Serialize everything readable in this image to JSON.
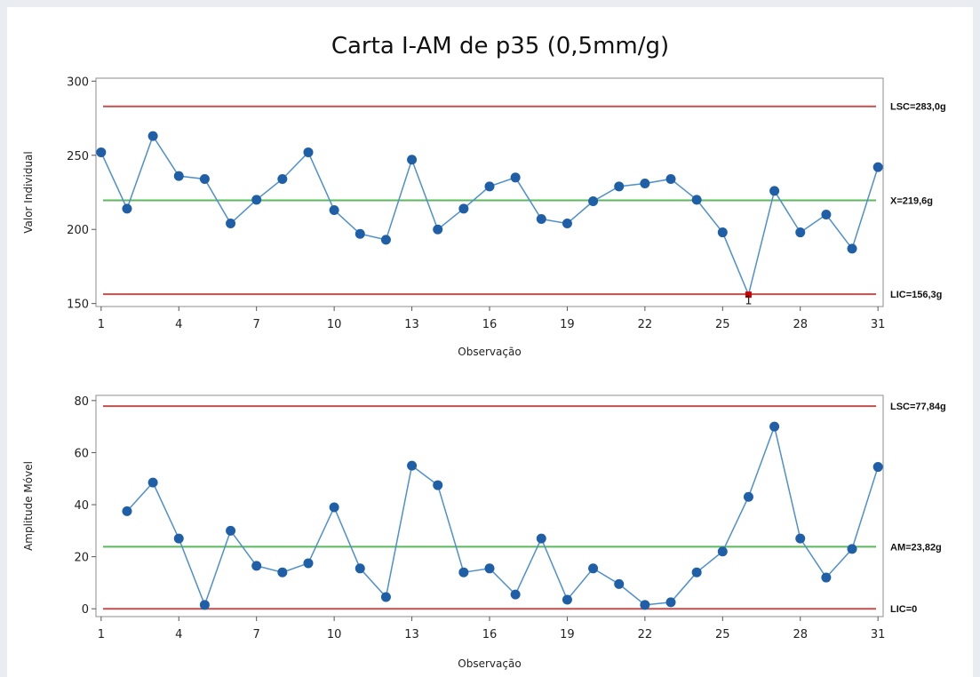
{
  "title": "Carta I-AM de p35 (0,5mm/g)",
  "colors": {
    "series": "#1f5fa8",
    "line": "#4d8fd0",
    "center": "#5cb85c",
    "limit": "#c0504d",
    "outlier": "#d40000"
  },
  "chart_data": [
    {
      "type": "line",
      "name": "individual",
      "xlabel": "Observação",
      "ylabel": "Valor Individual",
      "ylim": [
        148,
        302
      ],
      "yticks": [
        150,
        200,
        250,
        300
      ],
      "xticks": [
        1,
        4,
        7,
        10,
        13,
        16,
        19,
        22,
        25,
        28,
        31
      ],
      "x": [
        1,
        2,
        3,
        4,
        5,
        6,
        7,
        8,
        9,
        10,
        11,
        12,
        13,
        14,
        15,
        16,
        17,
        18,
        19,
        20,
        21,
        22,
        23,
        24,
        25,
        26,
        27,
        28,
        29,
        30,
        31
      ],
      "values": [
        252,
        214,
        263,
        236,
        234,
        204,
        220,
        234,
        252,
        213,
        197,
        193,
        247,
        200,
        214,
        229,
        235,
        207,
        204,
        219,
        229,
        231,
        234,
        220,
        198,
        156,
        226,
        198,
        210,
        187,
        242
      ],
      "outliers": [
        26
      ],
      "outlier_marker": "1",
      "ucl": {
        "value": 283.0,
        "label": "LSC=283,0g"
      },
      "center": {
        "value": 219.6,
        "label": "X=219,6g"
      },
      "lcl": {
        "value": 156.3,
        "label": "LIC=156,3g"
      }
    },
    {
      "type": "line",
      "name": "moving_range",
      "xlabel": "Observação",
      "ylabel": "Amplitude Móvel",
      "ylim": [
        -3,
        82
      ],
      "yticks": [
        0,
        20,
        40,
        60,
        80
      ],
      "xticks": [
        1,
        4,
        7,
        10,
        13,
        16,
        19,
        22,
        25,
        28,
        31
      ],
      "x": [
        2,
        3,
        4,
        5,
        6,
        7,
        8,
        9,
        10,
        11,
        12,
        13,
        14,
        15,
        16,
        17,
        18,
        19,
        20,
        21,
        22,
        23,
        24,
        25,
        26,
        27,
        28,
        29,
        30,
        31
      ],
      "values": [
        37.5,
        48.5,
        27,
        1.5,
        30,
        16.5,
        14,
        17.5,
        39,
        15.5,
        4.5,
        55,
        47.5,
        14,
        15.5,
        5.5,
        27,
        3.5,
        15.5,
        9.5,
        1.5,
        2.5,
        14,
        22,
        43,
        70,
        27,
        12,
        23,
        54.5
      ],
      "ucl": {
        "value": 77.84,
        "label": "LSC=77,84g"
      },
      "center": {
        "value": 23.82,
        "label": "AM=23,82g"
      },
      "lcl": {
        "value": 0,
        "label": "LIC=0"
      }
    }
  ]
}
